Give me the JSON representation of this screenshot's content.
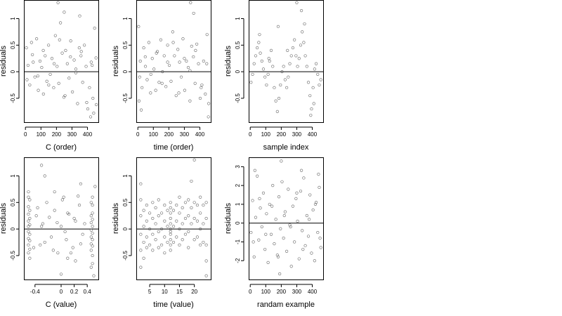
{
  "chart_data": [
    {
      "type": "scatter",
      "panel": "top-left",
      "xlabel": "C (order)",
      "ylabel": "residuals",
      "xlim": [
        -10,
        470
      ],
      "ylim": [
        -0.95,
        1.35
      ],
      "xticks": [
        0,
        100,
        200,
        300,
        400
      ],
      "yticks": [
        -0.5,
        0.0,
        0.5,
        1.0
      ],
      "hline": 0,
      "series": [
        {
          "x": [
            6,
            17,
            28,
            39,
            50,
            61,
            72,
            83,
            94,
            105,
            116,
            127,
            138,
            149,
            160,
            171,
            182,
            193,
            204,
            215,
            226,
            237,
            248,
            259,
            270,
            281,
            292,
            303,
            314,
            325,
            336,
            347,
            358,
            369,
            380,
            391,
            402,
            413,
            424,
            435,
            446,
            457,
            10,
            45,
            80,
            115,
            150,
            185,
            220,
            255,
            290,
            325,
            360,
            395,
            430,
            455,
            210,
            250,
            350,
            420,
            440
          ],
          "y": [
            0.45,
            0.12,
            -0.25,
            0.55,
            0.18,
            -0.1,
            0.62,
            -0.35,
            0.2,
            0.08,
            -0.42,
            0.3,
            -0.18,
            0.5,
            -0.05,
            0.25,
            -0.3,
            0.68,
            0.1,
            -0.22,
            0.92,
            0.35,
            -0.48,
            0.4,
            0.15,
            -0.12,
            0.58,
            -0.38,
            0.22,
            0.05,
            -0.6,
            0.45,
            0.3,
            -0.2,
            0.5,
            0.1,
            -0.7,
            -0.3,
            0.18,
            -0.5,
            0.82,
            -0.62,
            -0.15,
            0.32,
            -0.08,
            0.4,
            -0.25,
            0.15,
            0.6,
            -0.45,
            0.28,
            -0.02,
            0.38,
            -0.58,
            0.12,
            0.26,
            1.3,
            1.12,
            1.05,
            -0.85,
            -0.78
          ]
        }
      ]
    },
    {
      "type": "scatter",
      "panel": "top-middle",
      "xlabel": "time (order)",
      "ylabel": "residuals",
      "xlim": [
        -10,
        470
      ],
      "ylim": [
        -0.95,
        1.35
      ],
      "xticks": [
        0,
        100,
        200,
        300,
        400
      ],
      "yticks": [
        -0.5,
        0.0,
        0.5,
        1.0
      ],
      "hline": 0,
      "series": [
        {
          "x": [
            5,
            16,
            27,
            38,
            49,
            60,
            71,
            82,
            93,
            104,
            115,
            126,
            137,
            148,
            159,
            170,
            181,
            192,
            203,
            214,
            225,
            236,
            247,
            258,
            269,
            280,
            291,
            302,
            313,
            325,
            336,
            347,
            358,
            369,
            380,
            391,
            402,
            413,
            424,
            435,
            446,
            457,
            12,
            48,
            84,
            120,
            156,
            192,
            228,
            264,
            300,
            336,
            372,
            408,
            444,
            8,
            22,
            340,
            360,
            455
          ],
          "y": [
            0.85,
            0.2,
            -0.3,
            0.45,
            0.1,
            -0.15,
            0.55,
            -0.4,
            0.25,
            0.05,
            -0.35,
            0.38,
            -0.2,
            0.6,
            0,
            0.3,
            -0.28,
            0.5,
            0.12,
            -0.18,
            0.75,
            0.3,
            -0.45,
            0.42,
            0.18,
            -0.1,
            0.62,
            -0.35,
            0.2,
            0.08,
            -0.55,
            0.48,
            0.28,
            -0.22,
            0.52,
            0.15,
            -0.5,
            -0.25,
            0.2,
            -0.42,
            0.7,
            -0.6,
            -0.1,
            0.28,
            -0.05,
            0.35,
            -0.22,
            0.18,
            0.55,
            -0.4,
            0.25,
            0.02,
            0.4,
            -0.3,
            0.15,
            -0.55,
            -0.72,
            1.3,
            1.1,
            -0.85
          ]
        }
      ]
    },
    {
      "type": "scatter",
      "panel": "top-right",
      "xlabel": "sample index",
      "ylabel": "residuals",
      "xlim": [
        -10,
        470
      ],
      "ylim": [
        -0.95,
        1.35
      ],
      "xticks": [
        0,
        100,
        200,
        300,
        400
      ],
      "yticks": [
        -0.5,
        0.0,
        0.5,
        1.0
      ],
      "hline": 0,
      "series": [
        {
          "x": [
            5,
            15,
            25,
            35,
            45,
            55,
            65,
            75,
            85,
            95,
            105,
            115,
            125,
            135,
            145,
            155,
            165,
            175,
            185,
            195,
            205,
            215,
            225,
            235,
            245,
            255,
            265,
            275,
            285,
            295,
            305,
            315,
            325,
            335,
            345,
            355,
            365,
            375,
            385,
            395,
            405,
            415,
            425,
            435,
            445,
            455,
            60,
            120,
            180,
            240,
            300,
            330,
            350,
            390,
            410
          ],
          "y": [
            -0.2,
            -0.05,
            0.15,
            0.3,
            0.45,
            0.55,
            0.35,
            0.2,
            0.05,
            -0.1,
            -0.25,
            -0.05,
            0.2,
            0.4,
            0.1,
            -0.3,
            -0.55,
            -0.75,
            -0.5,
            -0.25,
            0,
            0.1,
            -0.15,
            -0.3,
            -0.1,
            0.15,
            0.3,
            0.45,
            0.6,
            0.3,
            0.1,
            0.25,
            0.5,
            0.75,
            0.55,
            0.3,
            0.1,
            -0.2,
            -0.45,
            -0.7,
            -0.3,
            0.05,
            0.15,
            -0.05,
            -0.25,
            -0.15,
            0.7,
            0.25,
            0.85,
            0.4,
            1.3,
            1.15,
            0.9,
            -0.82,
            -0.6
          ]
        }
      ]
    },
    {
      "type": "scatter",
      "panel": "bottom-left",
      "xlabel": "C (value)",
      "ylabel": "residuals",
      "xlim": [
        -0.57,
        0.57
      ],
      "ylim": [
        -0.95,
        1.35
      ],
      "xticks": [
        -0.4,
        0.0,
        0.2,
        0.4
      ],
      "yticks": [
        -0.5,
        0.0,
        0.5,
        1.0
      ],
      "hline": 0,
      "series": [
        {
          "x": [
            -0.5,
            -0.5,
            -0.5,
            -0.5,
            -0.5,
            -0.5,
            -0.5,
            -0.5,
            -0.5,
            -0.5,
            -0.48,
            -0.48,
            -0.48,
            -0.48,
            -0.48,
            -0.48,
            -0.48,
            -0.48,
            0.48,
            0.48,
            0.48,
            0.48,
            0.48,
            0.48,
            0.48,
            0.48,
            0.48,
            0.48,
            0.46,
            0.46,
            0.46,
            0.46,
            0.46,
            0.46,
            0.46,
            0.46,
            -0.38,
            -0.32,
            -0.28,
            -0.22,
            -0.15,
            -0.1,
            -0.05,
            0,
            0.04,
            0.08,
            0.12,
            0.18,
            0.22,
            0.28,
            0.33,
            -0.42,
            -0.36,
            -0.3,
            -0.25,
            -0.18,
            -0.12,
            -0.06,
            0.02,
            0.06,
            0.1,
            0.15,
            0.2,
            0.26,
            0.3,
            0.36,
            -0.3,
            -0.1,
            0.1,
            0.3,
            -0.25,
            0.52,
            0.5,
            0.22,
            0
          ],
          "y": [
            0.6,
            0.42,
            0.28,
            0.15,
            0.05,
            -0.05,
            -0.18,
            -0.3,
            -0.45,
            0.7,
            0.55,
            0.35,
            0.2,
            0.08,
            -0.1,
            -0.22,
            -0.38,
            -0.55,
            0.45,
            0.3,
            0.18,
            0.05,
            -0.08,
            -0.2,
            -0.32,
            -0.5,
            -0.65,
            0.6,
            0.5,
            0.25,
            0.12,
            -0.02,
            -0.15,
            -0.28,
            -0.4,
            -0.72,
            0.25,
            -0.3,
            0.1,
            0.5,
            -0.15,
            0.35,
            -0.45,
            0.05,
            0.6,
            -0.2,
            0.28,
            -0.35,
            0.15,
            0.45,
            -0.1,
            -0.35,
            0.4,
            0.05,
            -0.25,
            0.22,
            -0.4,
            0.12,
            0.55,
            -0.05,
            0.3,
            -0.45,
            0.2,
            0.62,
            -0.28,
            0.1,
            1.2,
            0.7,
            -0.55,
            0.85,
            1.0,
            0.8,
            -0.88,
            -0.6,
            -0.85
          ]
        }
      ]
    },
    {
      "type": "scatter",
      "panel": "bottom-middle",
      "xlabel": "time (value)",
      "ylabel": "residuals",
      "xlim": [
        0.5,
        25.5
      ],
      "ylim": [
        -0.95,
        1.35
      ],
      "xticks": [
        5,
        10,
        15,
        20
      ],
      "yticks": [
        -0.5,
        0.0,
        0.5,
        1.0
      ],
      "hline": 0,
      "series": [
        {
          "x": [
            2,
            2,
            2,
            2,
            2,
            3,
            3,
            3,
            3,
            4,
            4,
            4,
            4,
            5,
            5,
            5,
            6,
            6,
            6,
            6,
            7,
            7,
            7,
            8,
            8,
            8,
            8,
            9,
            9,
            9,
            10,
            10,
            10,
            10,
            11,
            11,
            11,
            12,
            12,
            12,
            12,
            12,
            12,
            12,
            12,
            12,
            12,
            13,
            13,
            13,
            14,
            14,
            14,
            15,
            15,
            15,
            15,
            16,
            16,
            16,
            17,
            17,
            17,
            18,
            18,
            18,
            18,
            19,
            19,
            19,
            20,
            20,
            20,
            21,
            21,
            21,
            22,
            22,
            22,
            22,
            23,
            23,
            23,
            24,
            24,
            24,
            24,
            2,
            12,
            20,
            24
          ],
          "y": [
            0.55,
            0.25,
            -0.1,
            -0.4,
            0.85,
            0.35,
            0.05,
            -0.25,
            -0.55,
            0.45,
            0.15,
            -0.15,
            -0.35,
            0.3,
            0,
            -0.3,
            0.5,
            0.2,
            -0.1,
            -0.4,
            0.4,
            0.1,
            -0.2,
            0.55,
            0.25,
            -0.05,
            -0.35,
            0.3,
            0,
            -0.3,
            0.45,
            0.15,
            -0.15,
            -0.45,
            0.35,
            0.05,
            -0.25,
            0.5,
            0.4,
            0.3,
            0.2,
            0.1,
            0,
            -0.1,
            -0.2,
            -0.3,
            -0.4,
            0.35,
            0.05,
            -0.25,
            0.45,
            0.15,
            -0.15,
            0.6,
            0.3,
            0,
            -0.3,
            0.4,
            0.1,
            -0.2,
            0.5,
            0.2,
            -0.1,
            0.55,
            0.25,
            -0.05,
            -0.35,
            0.9,
            0.4,
            0.1,
            0.5,
            0.2,
            -0.2,
            0.45,
            0.15,
            -0.15,
            0.6,
            0.3,
            0,
            -0.3,
            0.45,
            0.1,
            -0.25,
            0.5,
            0.2,
            -0.3,
            -0.6,
            -0.72,
            -0.05,
            1.3,
            -0.88
          ]
        }
      ]
    },
    {
      "type": "scatter",
      "panel": "bottom-right",
      "xlabel": "randam example",
      "ylabel": "residuals",
      "xlim": [
        -10,
        470
      ],
      "ylim": [
        -3.0,
        3.5
      ],
      "xticks": [
        0,
        100,
        200,
        300,
        400
      ],
      "yticks": [
        -2,
        -1,
        0,
        1,
        2,
        3
      ],
      "hline": 0,
      "series": [
        {
          "x": [
            5,
            15,
            25,
            35,
            45,
            55,
            65,
            75,
            85,
            95,
            105,
            115,
            125,
            135,
            145,
            155,
            165,
            175,
            185,
            195,
            205,
            215,
            225,
            235,
            245,
            255,
            265,
            275,
            285,
            295,
            305,
            315,
            325,
            335,
            345,
            355,
            365,
            375,
            385,
            395,
            405,
            415,
            425,
            435,
            445,
            455,
            20,
            60,
            100,
            140,
            180,
            220,
            260,
            300,
            340,
            380,
            420,
            450,
            30,
            190,
            200,
            330,
            440
          ],
          "y": [
            -0.5,
            1.2,
            -1.8,
            0.3,
            2.5,
            -0.9,
            0.8,
            -0.2,
            1.6,
            -1.4,
            0.5,
            -2.1,
            1.0,
            -0.6,
            2.0,
            -1.1,
            0.2,
            -1.7,
            1.4,
            -0.3,
            2.2,
            -0.8,
            0.6,
            -1.5,
            1.8,
            -0.1,
            -2.3,
            0.9,
            -1.0,
            1.3,
            0.1,
            -1.9,
            1.7,
            -0.4,
            2.4,
            -1.2,
            0.4,
            -0.7,
            1.5,
            -1.6,
            0.7,
            -2.0,
            1.1,
            -0.5,
            1.9,
            -1.3,
            -1.0,
            1.3,
            -0.6,
            0.9,
            -1.8,
            0.4,
            -0.2,
            1.6,
            -1.4,
            0.2,
            1.0,
            -0.8,
            2.8,
            -2.7,
            3.3,
            2.8,
            2.6
          ]
        }
      ]
    }
  ]
}
